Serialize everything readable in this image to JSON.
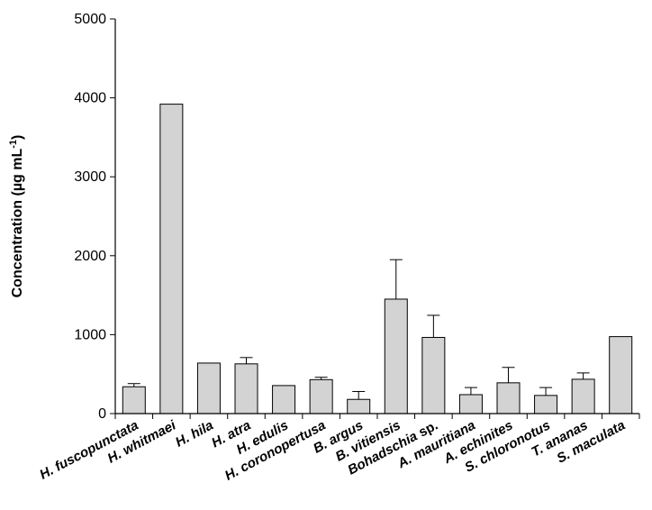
{
  "chart_data": {
    "type": "bar",
    "xlabel": "",
    "ylabel": "Concentration (µg mL",
    "ylabel_sup": "-1",
    "ylabel_close": ")",
    "ylim": [
      0,
      5000
    ],
    "yticks": [
      0,
      1000,
      2000,
      3000,
      4000,
      5000
    ],
    "grid": false,
    "bar_color": "#d3d3d3",
    "categories": [
      "H. fuscopunctata",
      "H. whitmaei",
      "H. hila",
      "H. atra",
      "H. edulis",
      "H. coronopertusa",
      "B. argus",
      "B. vitiensis",
      "Bohadschia sp.",
      "A. mauritiana",
      "A. echinites",
      "S. chloronotus",
      "T. ananas",
      "S. maculata"
    ],
    "italic": [
      true,
      true,
      true,
      true,
      true,
      true,
      true,
      true,
      "partial",
      true,
      true,
      true,
      true,
      true
    ],
    "values": [
      340,
      3920,
      640,
      630,
      355,
      430,
      180,
      1450,
      965,
      240,
      390,
      230,
      435,
      975
    ],
    "error_plus": [
      40,
      0,
      0,
      80,
      0,
      30,
      100,
      500,
      280,
      90,
      195,
      100,
      80,
      0
    ]
  }
}
